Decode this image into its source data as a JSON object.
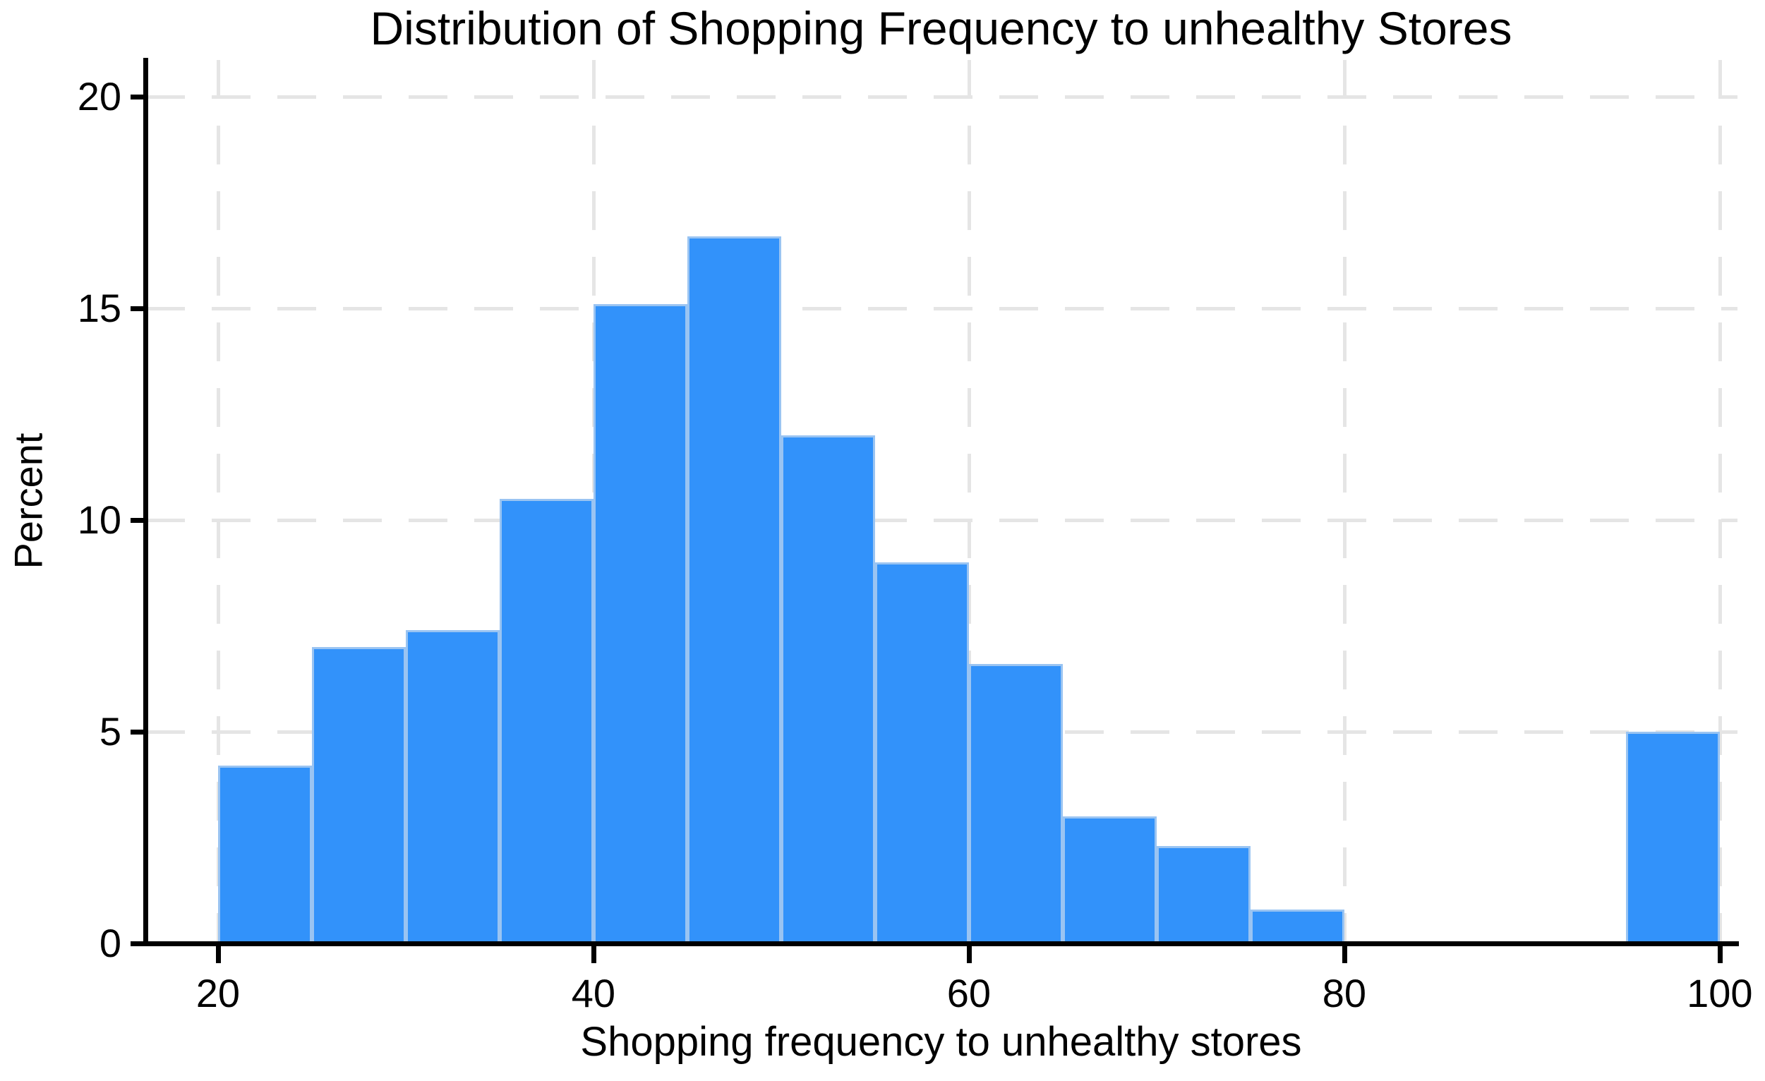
{
  "chart_data": {
    "type": "bar",
    "subtype": "histogram",
    "title": "Distribution of Shopping Frequency to unhealthy Stores",
    "xlabel": "Shopping frequency to unhealthy stores",
    "ylabel": "Percent",
    "bins": [
      {
        "x0": 20,
        "x1": 25,
        "percent": 4.2
      },
      {
        "x0": 25,
        "x1": 30,
        "percent": 7.0
      },
      {
        "x0": 30,
        "x1": 35,
        "percent": 7.4
      },
      {
        "x0": 35,
        "x1": 40,
        "percent": 10.5
      },
      {
        "x0": 40,
        "x1": 45,
        "percent": 15.1
      },
      {
        "x0": 45,
        "x1": 50,
        "percent": 16.7
      },
      {
        "x0": 50,
        "x1": 55,
        "percent": 12.0
      },
      {
        "x0": 55,
        "x1": 60,
        "percent": 9.0
      },
      {
        "x0": 60,
        "x1": 65,
        "percent": 6.6
      },
      {
        "x0": 65,
        "x1": 70,
        "percent": 3.0
      },
      {
        "x0": 70,
        "x1": 75,
        "percent": 2.3
      },
      {
        "x0": 75,
        "x1": 80,
        "percent": 0.8
      },
      {
        "x0": 95,
        "x1": 100,
        "percent": 5.0
      }
    ],
    "bin_width": 5,
    "x_ticks": [
      20,
      40,
      60,
      80,
      100
    ],
    "y_ticks": [
      0,
      5,
      10,
      15,
      20
    ],
    "x_view": [
      16.17,
      100.87
    ],
    "y_view": [
      0,
      20.87
    ],
    "grid": true,
    "grid_style": "dashed",
    "legend": null,
    "colors": {
      "bar_fill": "#3292FA",
      "bar_edge": "#9AC4F2",
      "grid": "#E5E5E5",
      "axis": "#000000",
      "text": "#000000",
      "background": "#FFFFFF"
    }
  }
}
